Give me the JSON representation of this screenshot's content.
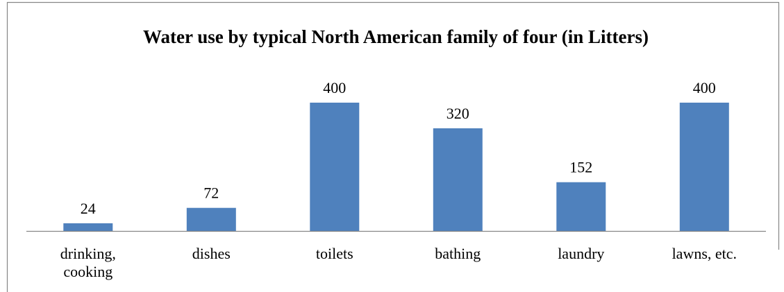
{
  "chart_data": {
    "type": "bar",
    "title": "Water use by typical North American family of four (in Litters)",
    "categories": [
      [
        "drinking,",
        "cooking"
      ],
      [
        "dishes"
      ],
      [
        "toilets"
      ],
      [
        "bathing"
      ],
      [
        "laundry"
      ],
      [
        "lawns, etc."
      ]
    ],
    "values": [
      24,
      72,
      400,
      320,
      152,
      400
    ],
    "xlabel": "",
    "ylabel": "",
    "ylim": [
      0,
      400
    ],
    "grid": false,
    "legend": "none",
    "colors": {
      "bar": "#4F81BD",
      "axis": "#868686",
      "border": "#868686"
    }
  }
}
